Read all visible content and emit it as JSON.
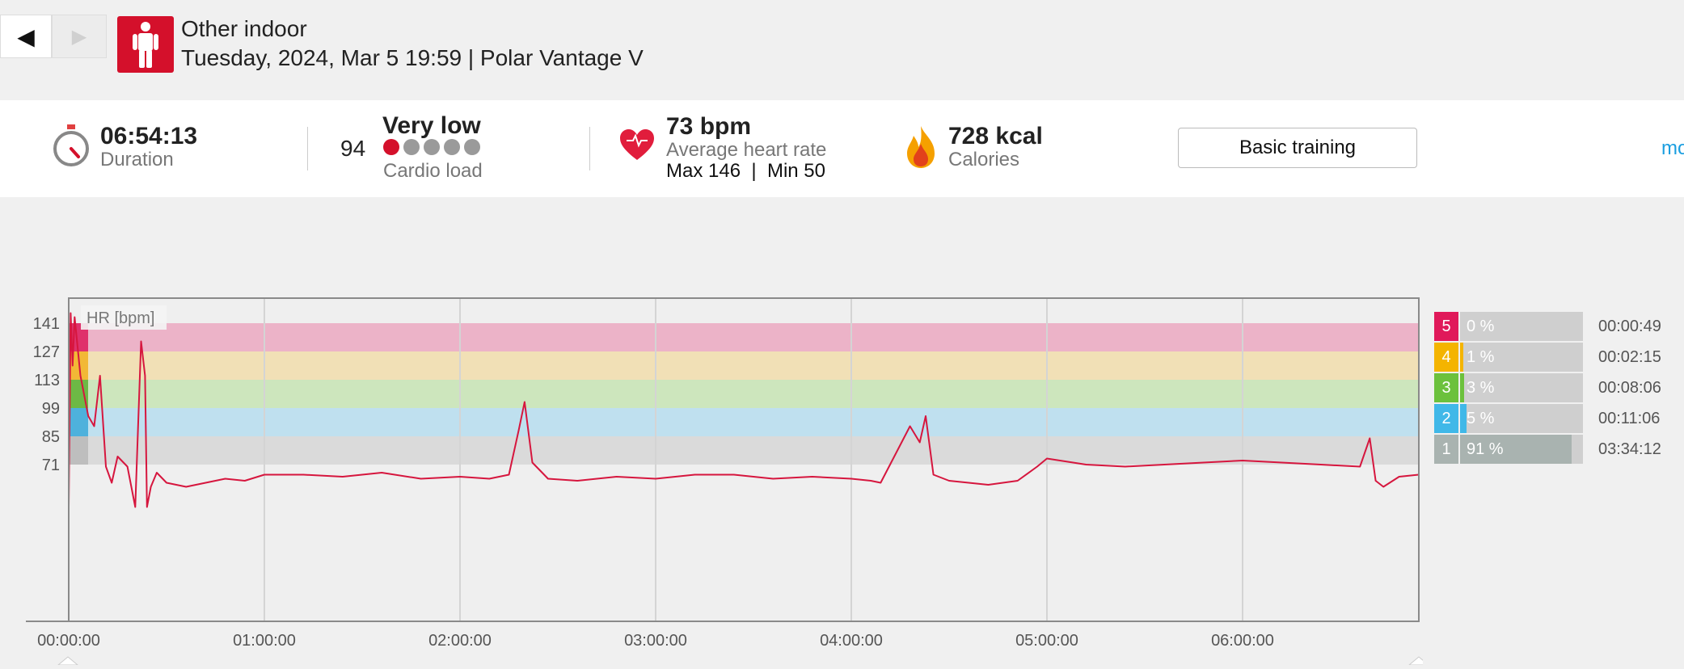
{
  "nav": {
    "back_icon": "◀",
    "forward_icon": "▶"
  },
  "activity": {
    "sport": "Other indoor",
    "date_device": "Tuesday, 2024, Mar 5 19:59 | Polar Vantage V",
    "icon": "person-icon",
    "icon_color": "#d4102b"
  },
  "summary": {
    "duration": {
      "value": "06:54:13",
      "label": "Duration",
      "icon": "stopwatch-icon"
    },
    "cardio_load": {
      "value": "94",
      "level": "Very low",
      "label": "Cardio load",
      "dots_filled": 1,
      "dots_total": 5
    },
    "heart_rate": {
      "value": "73 bpm",
      "label": "Average heart rate",
      "max_min": "Max 146  |  Min 50",
      "icon": "heart-icon"
    },
    "calories": {
      "value": "728 kcal",
      "label": "Calories",
      "icon": "flame-icon"
    },
    "benefit_button": "Basic training",
    "more_link": "mo"
  },
  "chart_data": {
    "type": "line",
    "label": "HR [bpm]",
    "y_ticks": [
      "141",
      "127",
      "113",
      "99",
      "85",
      "71"
    ],
    "x_ticks": [
      "00:00:00",
      "01:00:00",
      "02:00:00",
      "03:00:00",
      "04:00:00",
      "05:00:00",
      "06:00:00"
    ],
    "xlim_hours": [
      0,
      6.904
    ],
    "zone_bounds_bpm": [
      71,
      85,
      99,
      113,
      127,
      141
    ],
    "line_color": "#d6163e",
    "series": [
      {
        "x_hours": [
          0,
          0.01,
          0.02,
          0.03,
          0.06,
          0.1,
          0.13,
          0.16,
          0.19,
          0.22,
          0.25,
          0.3,
          0.34,
          0.37,
          0.39,
          0.4,
          0.42,
          0.45,
          0.5,
          0.6,
          0.7,
          0.8,
          0.9,
          1.0,
          1.2,
          1.4,
          1.6,
          1.8,
          2.0,
          2.15,
          2.25,
          2.3,
          2.33,
          2.37,
          2.45,
          2.6,
          2.8,
          3.0,
          3.2,
          3.4,
          3.6,
          3.8,
          4.0,
          4.1,
          4.15,
          4.3,
          4.35,
          4.38,
          4.42,
          4.5,
          4.7,
          4.85,
          4.95,
          5.0,
          5.2,
          5.4,
          5.6,
          5.8,
          6.0,
          6.2,
          6.4,
          6.6,
          6.65,
          6.68,
          6.72,
          6.8,
          6.9
        ],
        "y_bpm": [
          50,
          146,
          120,
          144,
          115,
          95,
          90,
          115,
          70,
          62,
          75,
          70,
          50,
          132,
          115,
          50,
          60,
          67,
          62,
          60,
          62,
          64,
          63,
          66,
          66,
          65,
          67,
          64,
          65,
          64,
          66,
          88,
          102,
          72,
          64,
          63,
          65,
          64,
          66,
          66,
          64,
          65,
          64,
          63,
          62,
          90,
          82,
          95,
          66,
          63,
          61,
          63,
          70,
          74,
          71,
          70,
          71,
          72,
          73,
          72,
          71,
          70,
          84,
          63,
          60,
          65,
          66
        ]
      }
    ]
  },
  "zones": [
    {
      "num": "5",
      "pct": "0 %",
      "time": "00:00:49",
      "color": "#e0195a",
      "fill": 0.0
    },
    {
      "num": "4",
      "pct": "1 %",
      "time": "00:02:15",
      "color": "#f4b400",
      "fill": 0.01
    },
    {
      "num": "3",
      "pct": "3 %",
      "time": "00:08:06",
      "color": "#6cc13c",
      "fill": 0.03
    },
    {
      "num": "2",
      "pct": "5 %",
      "time": "00:11:06",
      "color": "#40b8e8",
      "fill": 0.05
    },
    {
      "num": "1",
      "pct": "91 %",
      "time": "03:34:12",
      "color": "#a9b3b0",
      "fill": 0.91
    }
  ]
}
